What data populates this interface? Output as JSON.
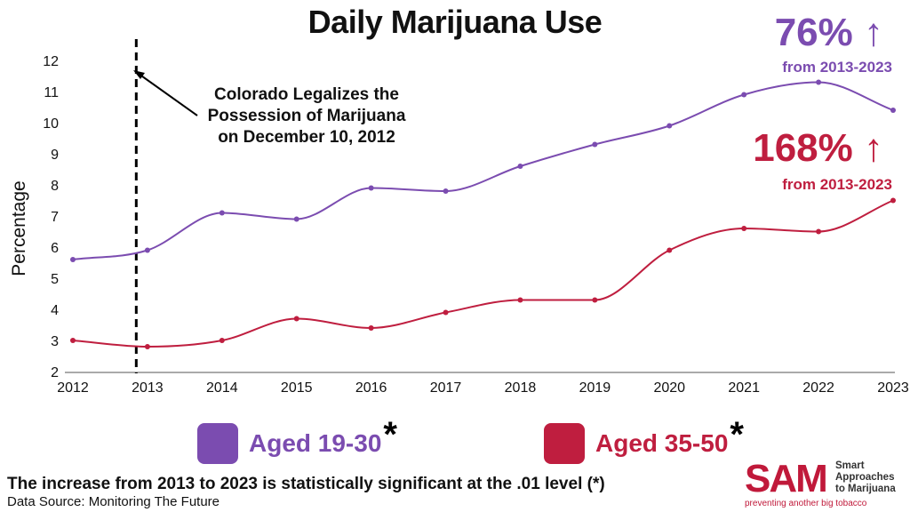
{
  "chart_data": {
    "type": "line",
    "title": "Daily Marijuana Use",
    "xlabel": "",
    "ylabel": "Percentage",
    "x": [
      2012,
      2013,
      2014,
      2015,
      2016,
      2017,
      2018,
      2019,
      2020,
      2021,
      2022,
      2023
    ],
    "x_tick_labels": [
      "2012",
      "2013",
      "2014",
      "2015",
      "2016",
      "2017",
      "2018",
      "2019",
      "2020",
      "2021",
      "2022",
      "2023"
    ],
    "ylim": [
      2,
      12
    ],
    "y_ticks": [
      2,
      3,
      4,
      5,
      6,
      7,
      8,
      9,
      10,
      11,
      12
    ],
    "grid": false,
    "series": [
      {
        "name": "Aged 19-30",
        "color": "#7b4cb0",
        "values": [
          5.6,
          5.9,
          7.1,
          6.9,
          7.9,
          7.8,
          8.6,
          9.3,
          9.9,
          10.9,
          11.3,
          10.4
        ]
      },
      {
        "name": "Aged 35-50",
        "color": "#bf1e3f",
        "values": [
          3.0,
          2.8,
          3.0,
          3.7,
          3.4,
          3.9,
          4.3,
          4.3,
          5.9,
          6.6,
          6.5,
          7.5
        ]
      }
    ],
    "vline": {
      "x": 2012.85,
      "style": "dashed"
    },
    "annotation": {
      "lines": [
        "Colorado Legalizes the",
        "Possession of Marijuana",
        "on December 10, 2012"
      ]
    }
  },
  "stats": [
    {
      "big": "76% ↑",
      "sub": "from 2013-2023",
      "color": "#7b4cb0"
    },
    {
      "big": "168% ↑",
      "sub": "from 2013-2023",
      "color": "#bf1e3f"
    }
  ],
  "legend": [
    {
      "label": "Aged 19-30",
      "star": "*",
      "color": "#7b4cb0"
    },
    {
      "label": "Aged 35-50",
      "star": "*",
      "color": "#bf1e3f"
    }
  ],
  "footnote": "The increase from 2013 to 2023 is statistically significant at the .01 level (*)",
  "source": "Data Source: Monitoring The Future",
  "logo": {
    "mark": "SAM",
    "name": "Smart Approaches to Marijuana",
    "tagline": "preventing another big tobacco"
  }
}
